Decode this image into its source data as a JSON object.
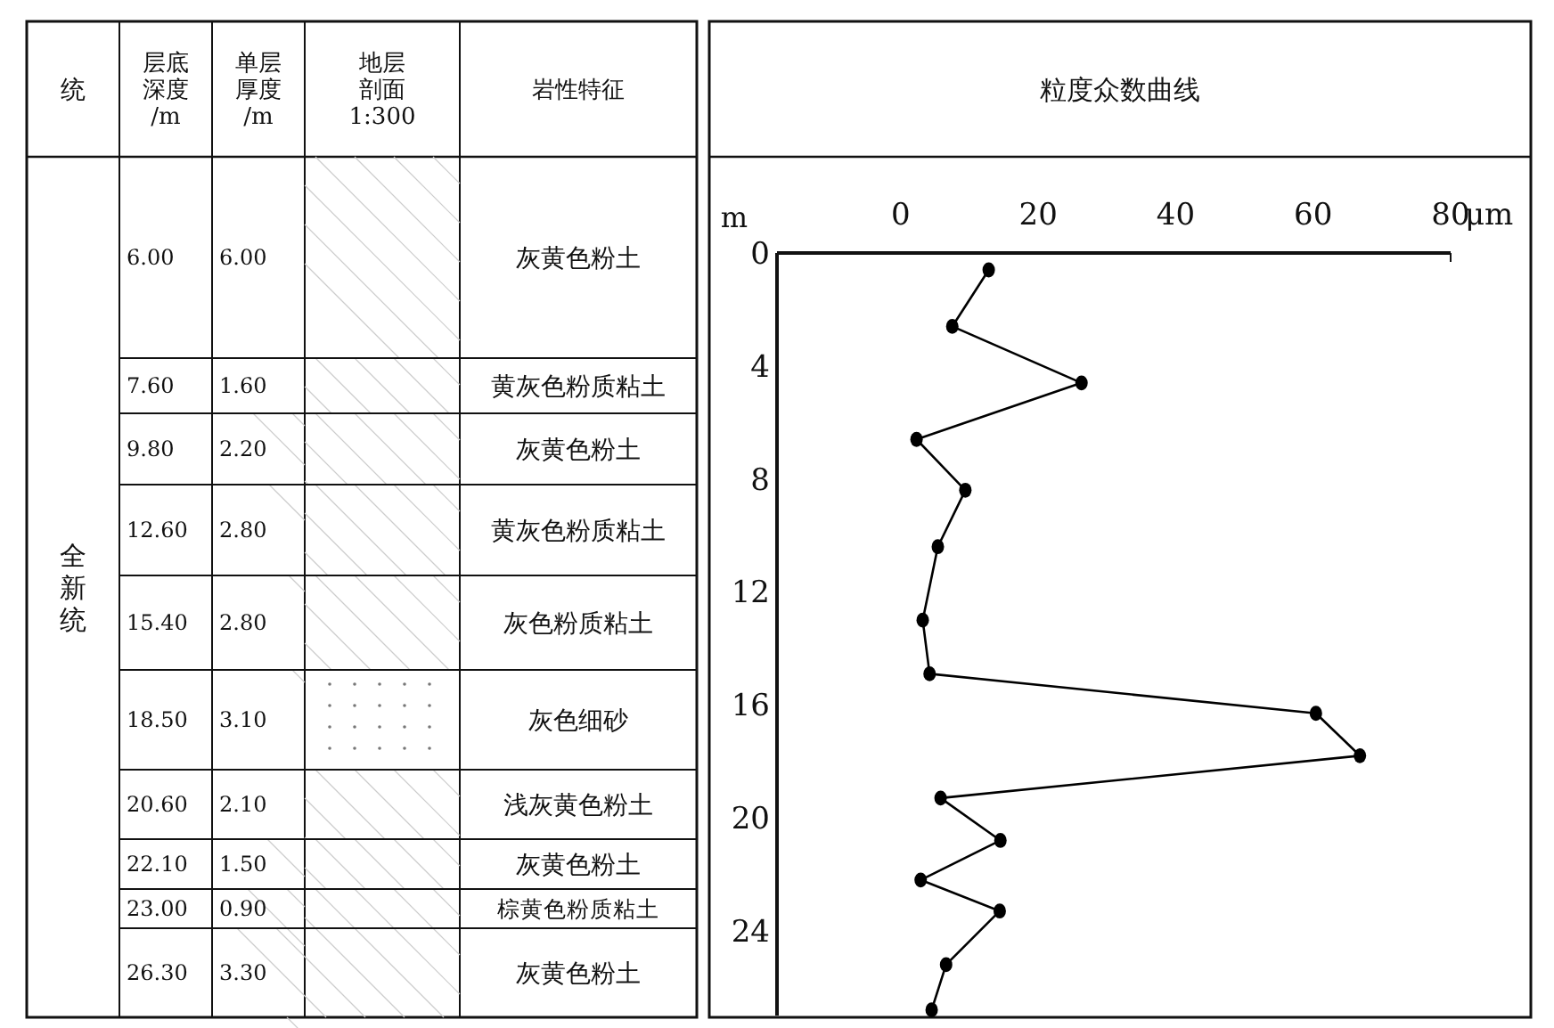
{
  "chart_data": [
    {
      "type": "other",
      "annotations": [
        "统",
        "层底深度/m",
        "单层厚度/m",
        "地层剖面1:300",
        "岩性特征",
        "全新统",
        "6.00",
        "6.00",
        "灰黄色粉土",
        "7.60",
        "1.60",
        "黄灰色粉质粘土",
        "9.80",
        "2.20",
        "灰黄色粉土",
        "12.60",
        "2.80",
        "黄灰色粉质粘土",
        "15.40",
        "2.80",
        "灰色粉质粘土",
        "18.50",
        "3.10",
        "灰色细砂",
        "20.60",
        "2.10",
        "浅灰黄色粉土",
        "22.10",
        "1.50",
        "灰黄色粉土",
        "23.00",
        "0.90",
        "棕黄色粉质粘土",
        "26.30",
        "3.30",
        "灰黄色粉土"
      ]
    },
    {
      "type": "line",
      "title": "粒度众数曲线",
      "xlabel": "μm",
      "ylabel": "m",
      "xlim": [
        -18,
        80
      ],
      "xticks": [
        0,
        20,
        40,
        60,
        80
      ],
      "ylim": [
        27,
        0
      ],
      "yticks": [
        0,
        4,
        8,
        12,
        16,
        20,
        24
      ],
      "marker": "circle",
      "line_style": "solid",
      "grid": false,
      "series": [
        {
          "color": "#000000",
          "x": [
            12.8,
            7.5,
            26.3,
            2.3,
            9.4,
            5.4,
            3.2,
            4.2,
            60.4,
            66.8,
            5.8,
            14.5,
            2.9,
            14.4,
            6.6,
            4.5
          ],
          "values": [
            0.6,
            2.6,
            4.6,
            6.6,
            8.4,
            10.4,
            13.0,
            14.9,
            16.3,
            17.8,
            19.3,
            20.8,
            22.2,
            23.3,
            25.2,
            26.8
          ]
        }
      ]
    }
  ]
}
